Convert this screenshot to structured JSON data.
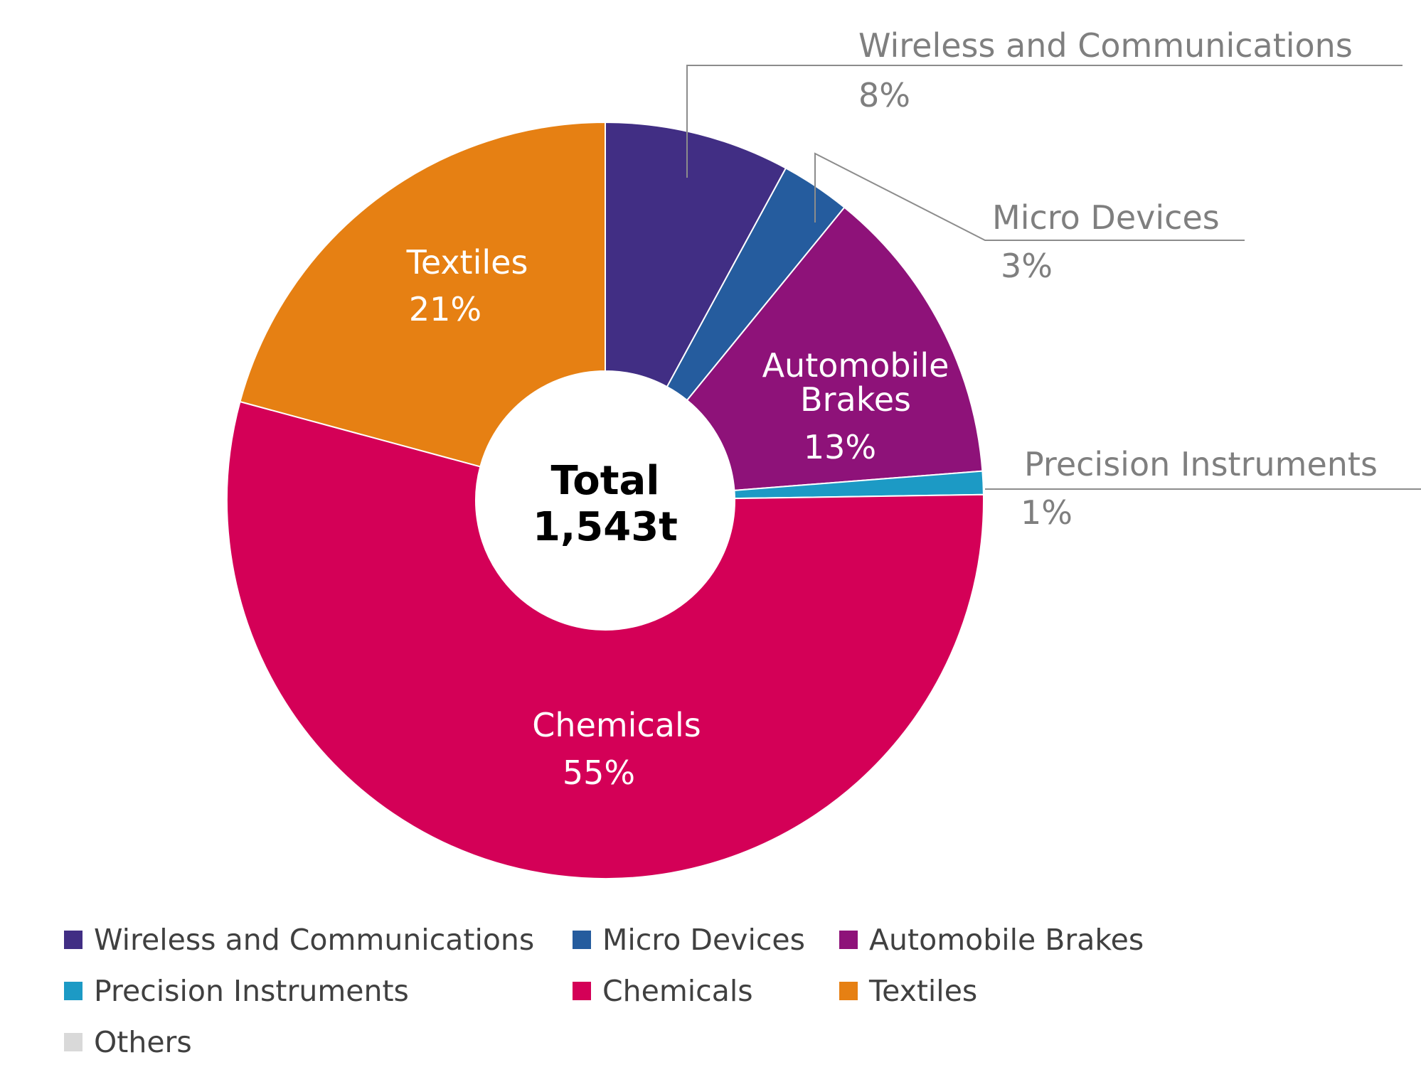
{
  "chart_data": {
    "type": "pie",
    "variant": "donut",
    "center_label": [
      "Total",
      "1,543t"
    ],
    "categories": [
      "Wireless and Communications",
      "Micro Devices",
      "Automobile Brakes",
      "Precision Instruments",
      "Chemicals",
      "Textiles",
      "Others"
    ],
    "values": [
      8,
      3,
      13,
      1,
      55,
      21,
      0
    ],
    "value_labels": [
      "8%",
      "3%",
      "13%",
      "1%",
      "55%",
      "21%",
      ""
    ],
    "colors": [
      "#412e84",
      "#255c9e",
      "#8e1279",
      "#1c9ac5",
      "#d40057",
      "#e68013",
      "#d9d9d9"
    ],
    "legend": {
      "position": "bottom",
      "entries": [
        "Wireless and Communications",
        "Micro Devices",
        "Automobile Brakes",
        "Precision Instruments",
        "Chemicals",
        "Textiles",
        "Others"
      ]
    }
  }
}
